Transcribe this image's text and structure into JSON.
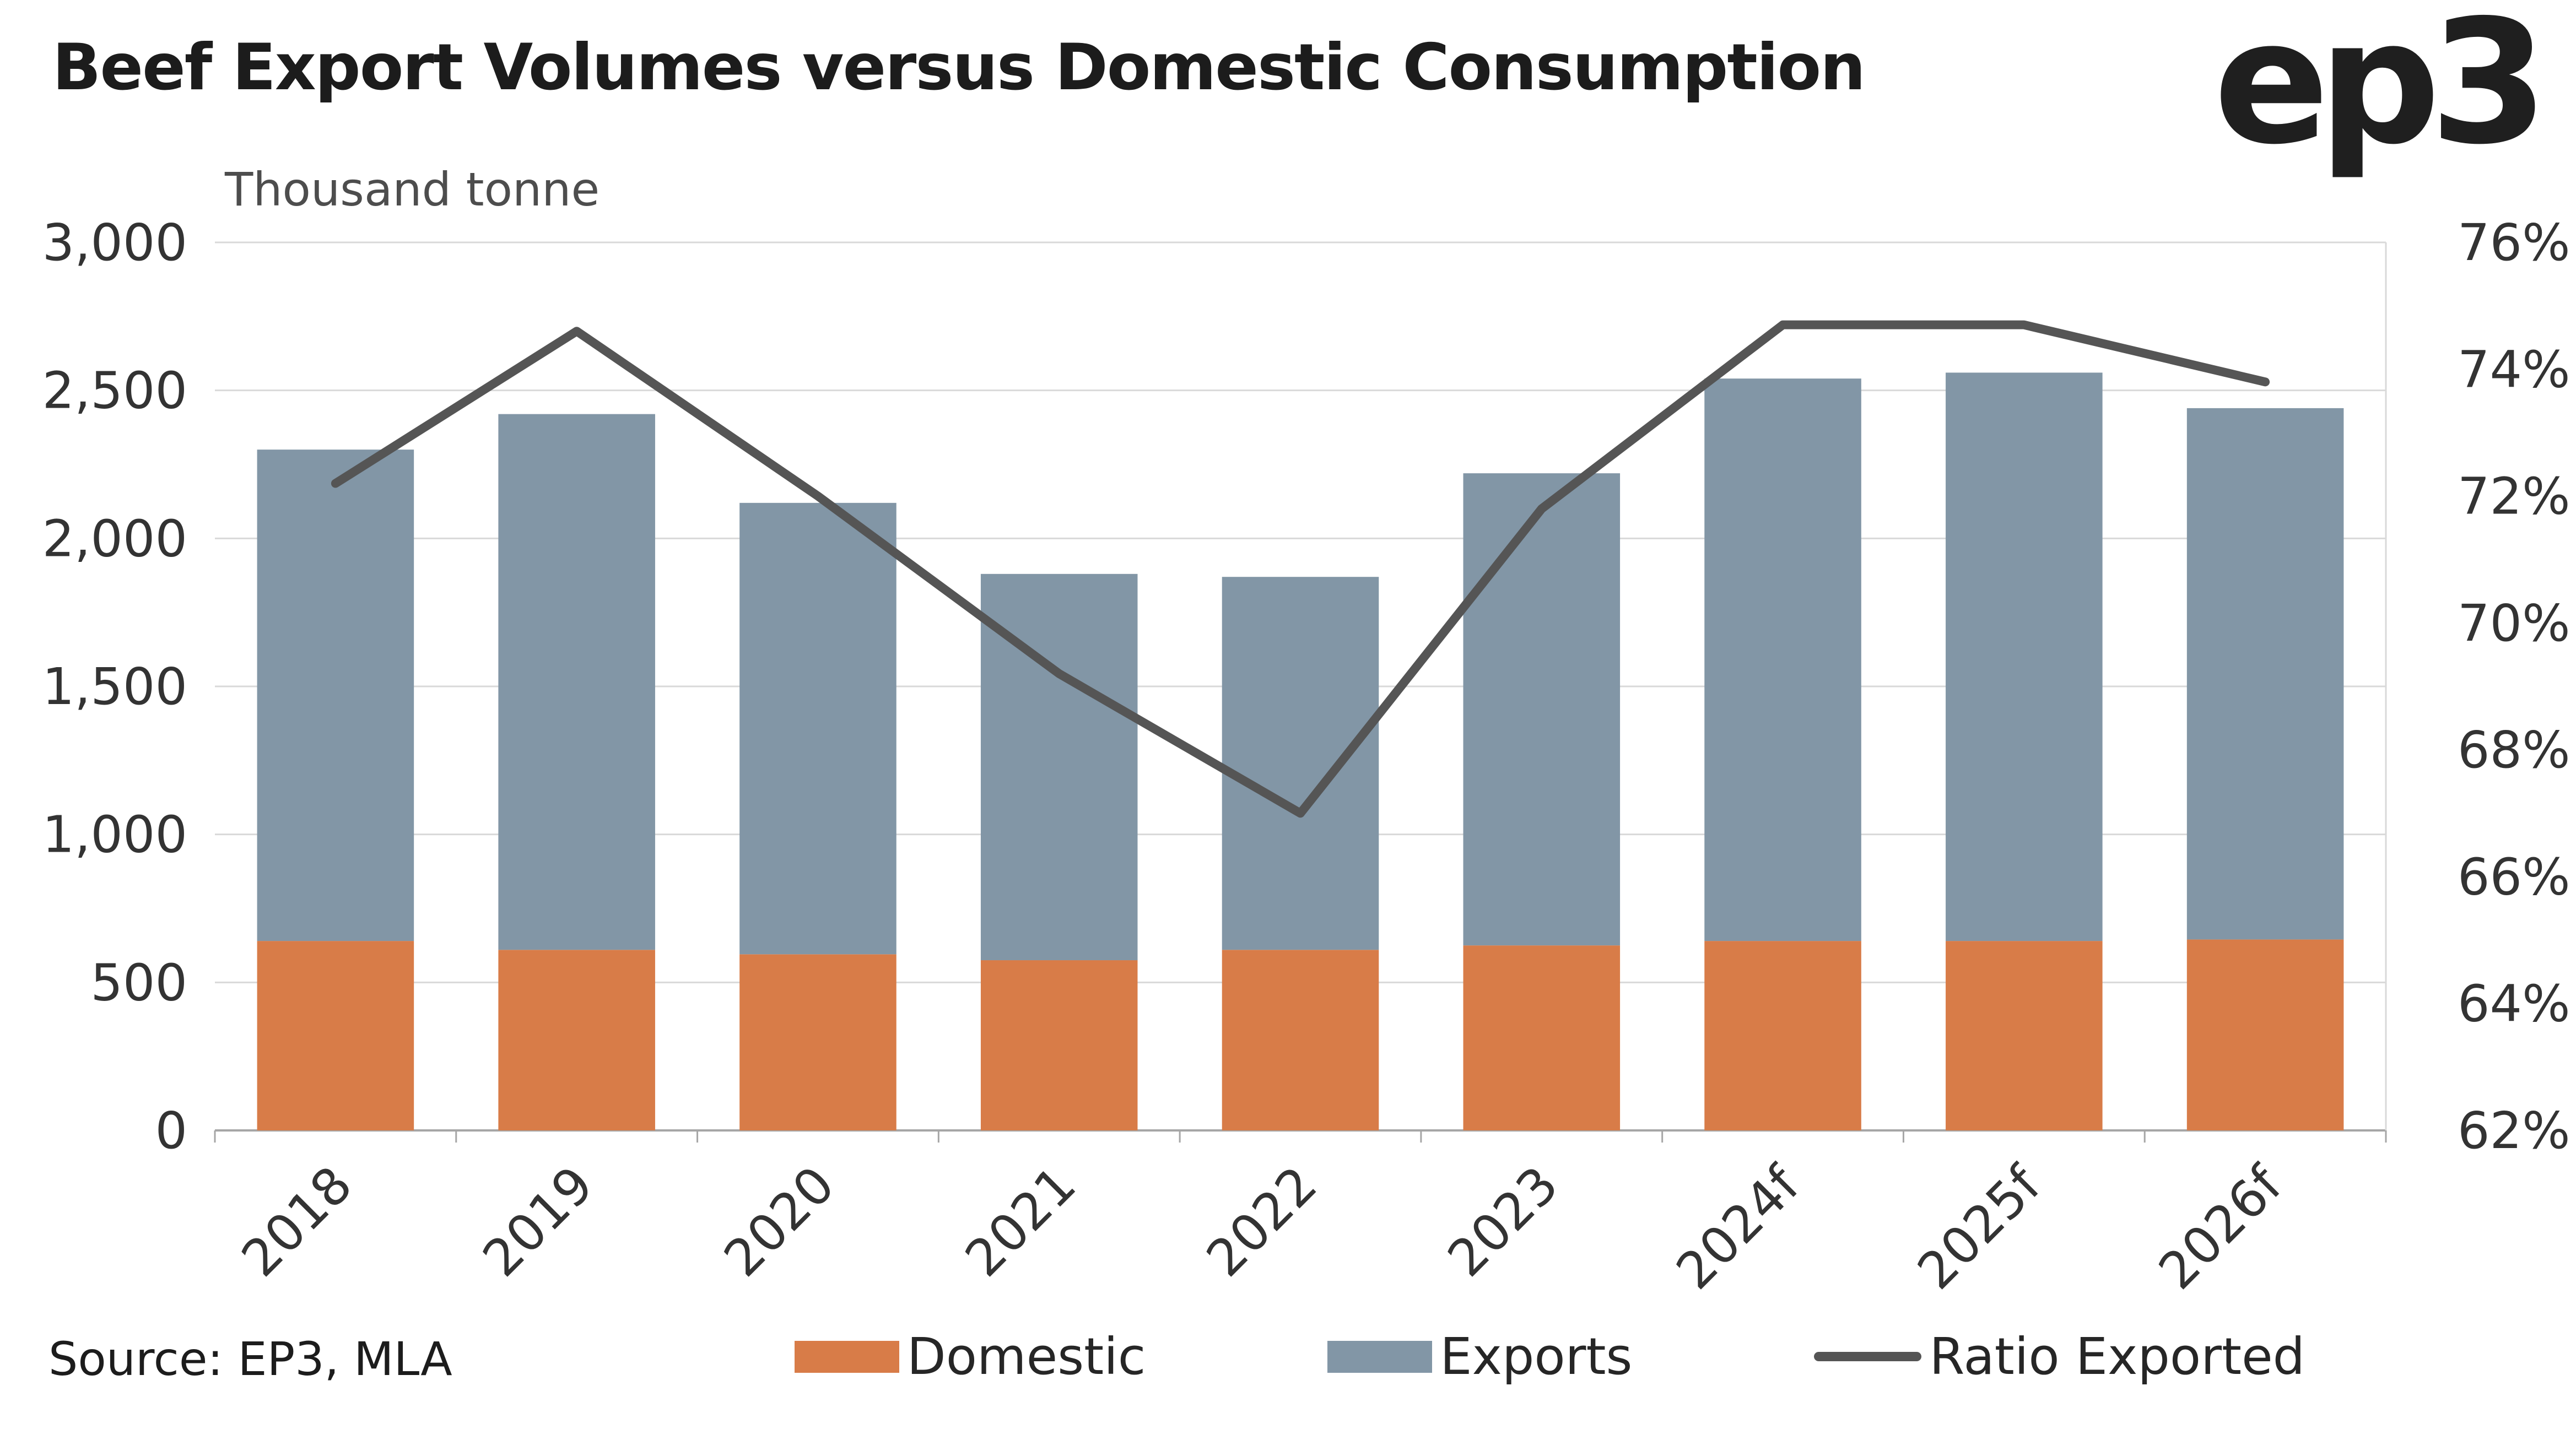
{
  "header": {
    "title": "Beef Export Volumes versus Domestic Consumption",
    "logo_text": "ep3"
  },
  "source_note": "Source: EP3, MLA",
  "legend": {
    "items": [
      {
        "label": "Domestic"
      },
      {
        "label": "Exports"
      },
      {
        "label": "Ratio Exported"
      }
    ]
  },
  "chart_data": {
    "type": "bar",
    "subtype": "stacked-bar-with-line",
    "title": "Beef Export Volumes versus Domestic Consumption",
    "left_axis_title": "Thousand tonne",
    "categories": [
      "2018",
      "2019",
      "2020",
      "2021",
      "2022",
      "2023",
      "2024f",
      "2025f",
      "2026f"
    ],
    "series": [
      {
        "name": "Domestic",
        "type": "bar",
        "axis": "left",
        "color": "#D87C48",
        "values": [
          640,
          610,
          595,
          575,
          610,
          625,
          640,
          640,
          645
        ]
      },
      {
        "name": "Exports",
        "type": "bar",
        "axis": "left",
        "color": "#8296A6",
        "values": [
          1660,
          1810,
          1525,
          1305,
          1260,
          1595,
          1900,
          1920,
          1795
        ]
      },
      {
        "name": "Ratio Exported",
        "type": "line",
        "axis": "right",
        "color": "#555555",
        "values": [
          72.2,
          74.6,
          72.0,
          69.2,
          67.0,
          71.8,
          74.7,
          74.7,
          73.8
        ]
      }
    ],
    "left_axis": {
      "min": 0,
      "max": 3000,
      "step": 500,
      "format": "thousands"
    },
    "right_axis": {
      "min": 62,
      "max": 76,
      "step": 2,
      "format": "percent"
    },
    "grid": "horizontal",
    "legend_position": "bottom",
    "bars_stacked": true
  }
}
